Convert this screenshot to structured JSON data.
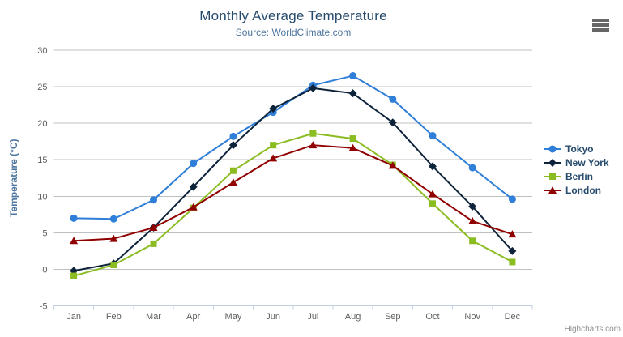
{
  "chart_data": {
    "type": "line",
    "title": "Monthly Average Temperature",
    "subtitle": "Source: WorldClimate.com",
    "xlabel": "",
    "ylabel": "Temperature (°C)",
    "ylim": [
      -5,
      30
    ],
    "ytick_step": 5,
    "grid": true,
    "legend_position": "right",
    "categories": [
      "Jan",
      "Feb",
      "Mar",
      "Apr",
      "May",
      "Jun",
      "Jul",
      "Aug",
      "Sep",
      "Oct",
      "Nov",
      "Dec"
    ],
    "series": [
      {
        "name": "Tokyo",
        "color": "#2f7ed8",
        "marker": "circle",
        "values": [
          7.0,
          6.9,
          9.5,
          14.5,
          18.2,
          21.5,
          25.2,
          26.5,
          23.3,
          18.3,
          13.9,
          9.6
        ]
      },
      {
        "name": "New York",
        "color": "#0d233a",
        "marker": "diamond",
        "values": [
          -0.2,
          0.8,
          5.7,
          11.3,
          17.0,
          22.0,
          24.8,
          24.1,
          20.1,
          14.1,
          8.6,
          2.5
        ]
      },
      {
        "name": "Berlin",
        "color": "#8bbc21",
        "marker": "square",
        "values": [
          -0.9,
          0.6,
          3.5,
          8.4,
          13.5,
          17.0,
          18.6,
          17.9,
          14.3,
          9.0,
          3.9,
          1.0
        ]
      },
      {
        "name": "London",
        "color": "#910000",
        "marker": "triangle",
        "values": [
          3.9,
          4.2,
          5.7,
          8.5,
          11.9,
          15.2,
          17.0,
          16.6,
          14.2,
          10.3,
          6.6,
          4.8
        ]
      }
    ],
    "colors": {
      "grid": "#c0c0c0",
      "axis": "#c0d0e0",
      "axis_label": "#606060",
      "title": "#274b6d",
      "subtitle": "#4d759e",
      "legend_text": "#274b6d",
      "credits": "#909090"
    }
  },
  "credits": {
    "label": "Highcharts.com"
  }
}
